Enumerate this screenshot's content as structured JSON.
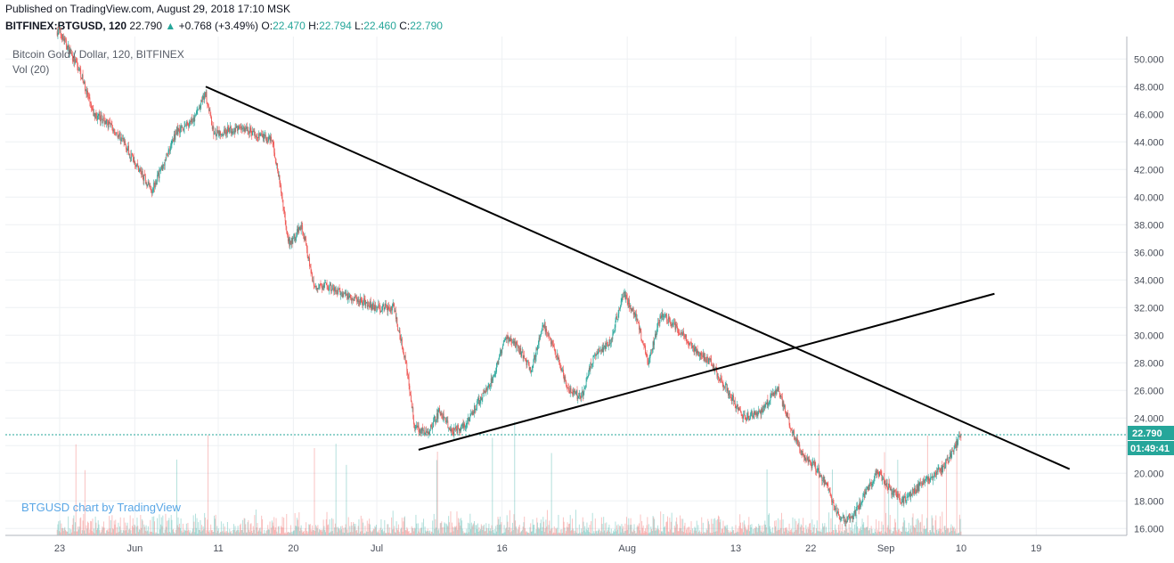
{
  "header": {
    "published": "Published on TradingView.com, August 29, 2018 17:10 MSK",
    "symbol": "BITFINEX:BTGUSD, 120",
    "last": "22.790",
    "change_arrow": "▲",
    "change": "+0.768 (+3.49%)",
    "open_label": "O:",
    "open": "22.470",
    "high_label": "H:",
    "high": "22.794",
    "low_label": "L:",
    "low": "22.460",
    "close_label": "C:",
    "close": "22.790"
  },
  "legend": {
    "title": "Bitcoin Gold / Dollar, 120, BITFINEX",
    "volume": "Vol (20)"
  },
  "watermark": "BTGUSD chart by TradingView",
  "price_badge": {
    "price": "22.790",
    "countdown": "01:49:41"
  },
  "colors": {
    "up": "#26a69a",
    "down": "#ef5350",
    "grid": "#eef0f3",
    "trendline": "#000000"
  },
  "chart_data": {
    "type": "line",
    "y_ticks": [
      "16.000",
      "18.000",
      "20.000",
      "22.000",
      "24.000",
      "26.000",
      "28.000",
      "30.000",
      "32.000",
      "34.000",
      "36.000",
      "38.000",
      "40.000",
      "42.000",
      "44.000",
      "46.000",
      "48.000",
      "50.000"
    ],
    "x_ticks": [
      "23",
      "Jun",
      "11",
      "20",
      "Jul",
      "16",
      "Aug",
      "13",
      "22",
      "Sep",
      "10",
      "19"
    ],
    "ylim": [
      15.5,
      51.5
    ],
    "series": [
      {
        "values": [
          [
            0.0,
            52.0
          ],
          [
            2.5,
            49.0
          ],
          [
            4.0,
            46.0
          ],
          [
            5.5,
            45.5
          ],
          [
            7.5,
            44.2
          ],
          [
            9.5,
            42.0
          ],
          [
            11.0,
            40.5
          ],
          [
            12.5,
            42.5
          ],
          [
            14.0,
            44.8
          ],
          [
            16.0,
            45.5
          ],
          [
            17.5,
            47.5
          ],
          [
            18.5,
            44.5
          ],
          [
            20.0,
            44.8
          ],
          [
            22.0,
            45.0
          ],
          [
            24.0,
            44.5
          ],
          [
            25.5,
            44.0
          ],
          [
            26.5,
            40.5
          ],
          [
            27.5,
            36.5
          ],
          [
            29.0,
            38.0
          ],
          [
            30.5,
            33.5
          ],
          [
            32.0,
            33.5
          ],
          [
            34.0,
            33.0
          ],
          [
            36.0,
            32.5
          ],
          [
            38.0,
            32.0
          ],
          [
            40.0,
            32.0
          ],
          [
            41.5,
            28.0
          ],
          [
            42.5,
            23.5
          ],
          [
            44.0,
            22.8
          ],
          [
            45.5,
            24.5
          ],
          [
            47.0,
            23.0
          ],
          [
            48.5,
            23.5
          ],
          [
            50.0,
            25.0
          ],
          [
            52.0,
            27.0
          ],
          [
            53.5,
            30.0
          ],
          [
            55.0,
            29.0
          ],
          [
            56.5,
            27.5
          ],
          [
            58.0,
            30.8
          ],
          [
            59.5,
            28.5
          ],
          [
            61.0,
            26.0
          ],
          [
            62.5,
            25.5
          ],
          [
            64.0,
            28.5
          ],
          [
            66.0,
            29.5
          ],
          [
            67.5,
            33.0
          ],
          [
            69.0,
            31.5
          ],
          [
            70.5,
            28.0
          ],
          [
            72.0,
            31.5
          ],
          [
            74.0,
            30.5
          ],
          [
            76.0,
            29.0
          ],
          [
            78.0,
            28.0
          ],
          [
            80.0,
            26.0
          ],
          [
            82.0,
            24.0
          ],
          [
            84.0,
            24.5
          ],
          [
            86.0,
            26.2
          ],
          [
            87.5,
            23.5
          ],
          [
            89.0,
            21.2
          ],
          [
            90.5,
            20.5
          ],
          [
            92.0,
            19.0
          ],
          [
            93.5,
            16.5
          ],
          [
            95.0,
            16.8
          ],
          [
            96.5,
            18.5
          ],
          [
            98.0,
            20.2
          ],
          [
            99.5,
            18.8
          ],
          [
            101.0,
            18.0
          ],
          [
            102.5,
            18.8
          ],
          [
            104.0,
            19.5
          ],
          [
            106.0,
            20.5
          ],
          [
            107.5,
            22.2
          ],
          [
            108.0,
            22.8
          ]
        ]
      }
    ],
    "trendlines": [
      {
        "from": [
          17.5,
          48.0
        ],
        "to": [
          121.0,
          20.3
        ]
      },
      {
        "from": [
          43.0,
          21.7
        ],
        "to": [
          112.0,
          33.0
        ]
      }
    ],
    "last_price": 22.79,
    "grid": true
  }
}
